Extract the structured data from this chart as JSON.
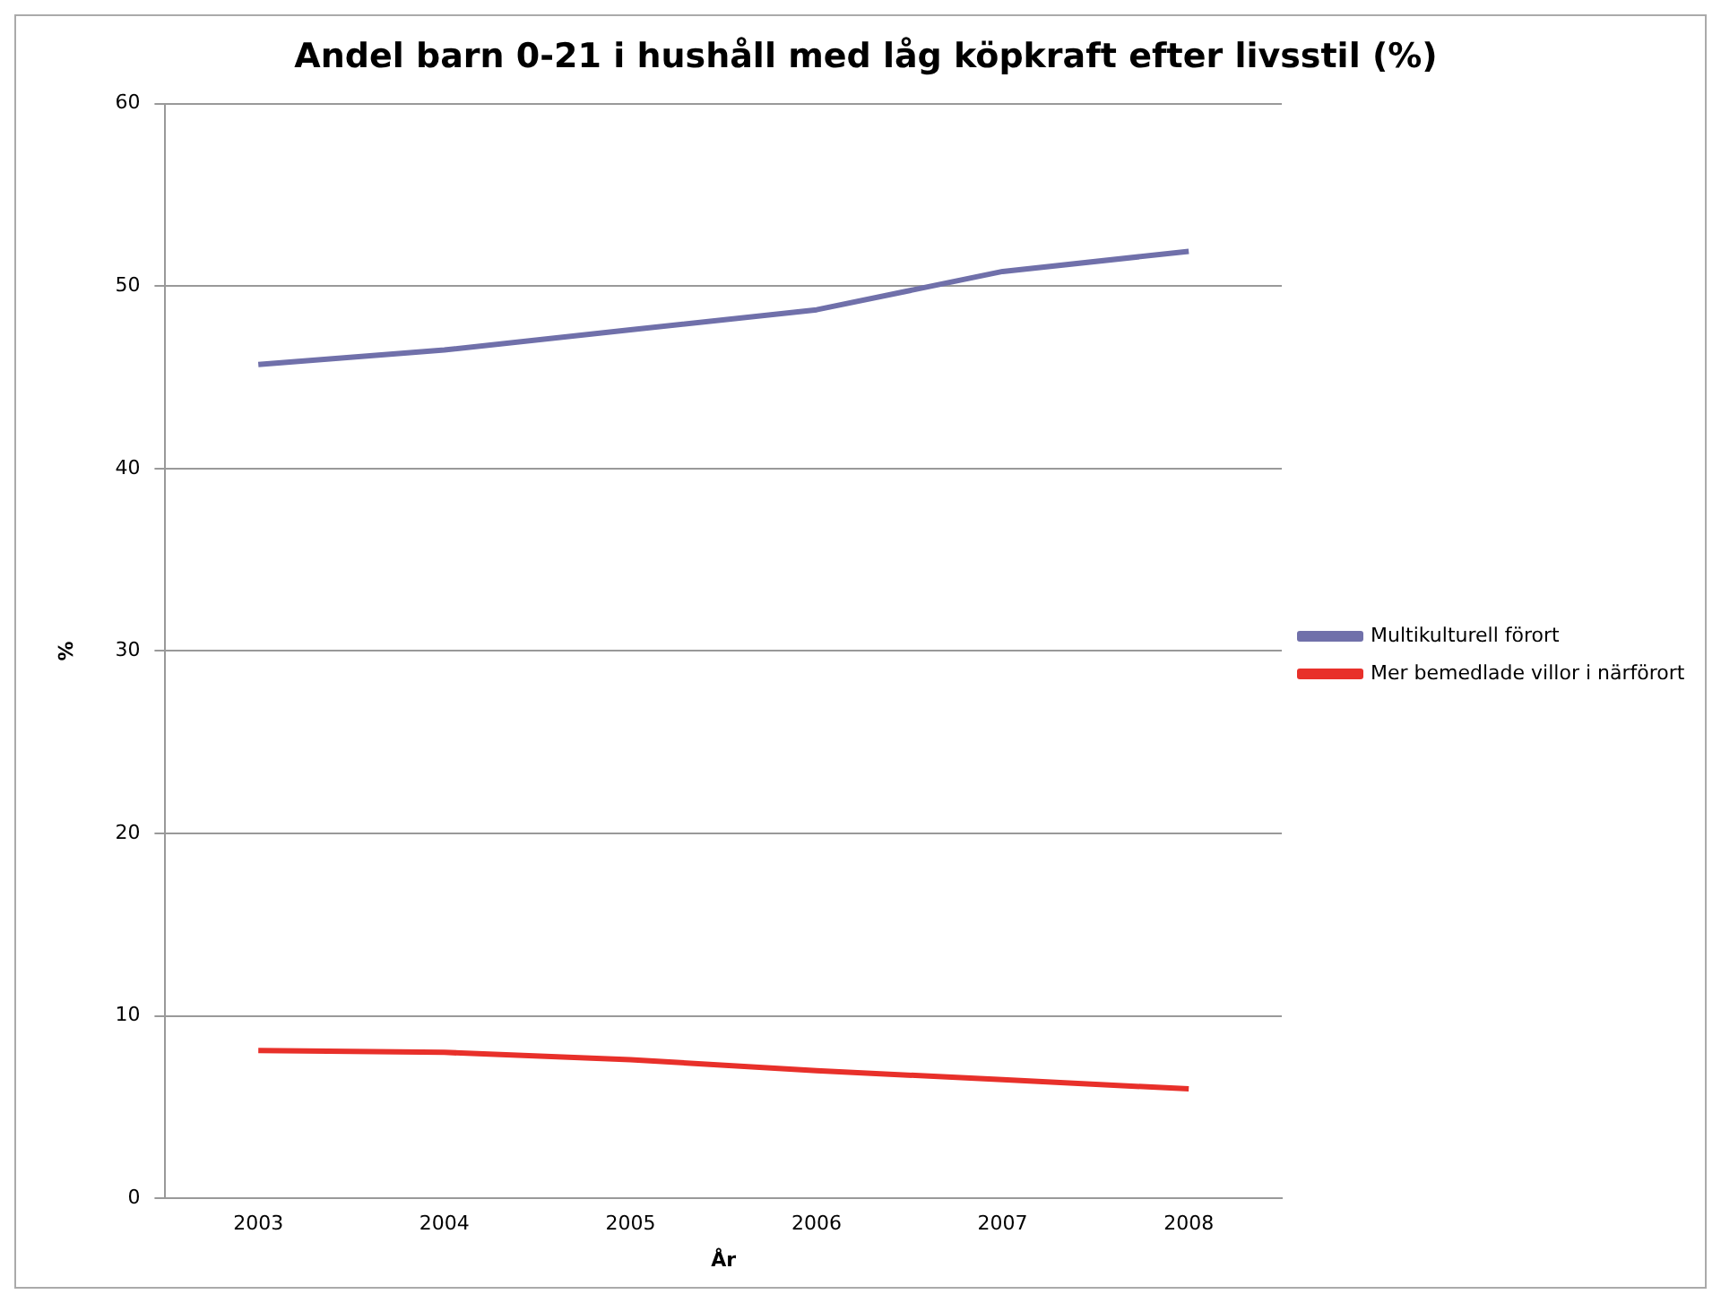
{
  "chart_data": {
    "type": "line",
    "title": "Andel barn 0-21 i hushåll med låg köpkraft efter livsstil (%)",
    "xlabel": "År",
    "ylabel": "%",
    "categories": [
      "2003",
      "2004",
      "2005",
      "2006",
      "2007",
      "2008"
    ],
    "series": [
      {
        "name": "Multikulturell förort",
        "color": "#7070aa",
        "values": [
          45.7,
          46.5,
          47.6,
          48.7,
          50.8,
          51.9
        ]
      },
      {
        "name": "Mer bemedlade villor i närförort",
        "color": "#e8302a",
        "values": [
          8.1,
          8.0,
          7.6,
          7.0,
          6.5,
          6.0
        ]
      }
    ],
    "ylim": [
      0,
      60
    ],
    "yticks": [
      0,
      10,
      20,
      30,
      40,
      50,
      60
    ],
    "grid": "y",
    "legend": "right",
    "marker": "none",
    "line_style": "solid"
  }
}
